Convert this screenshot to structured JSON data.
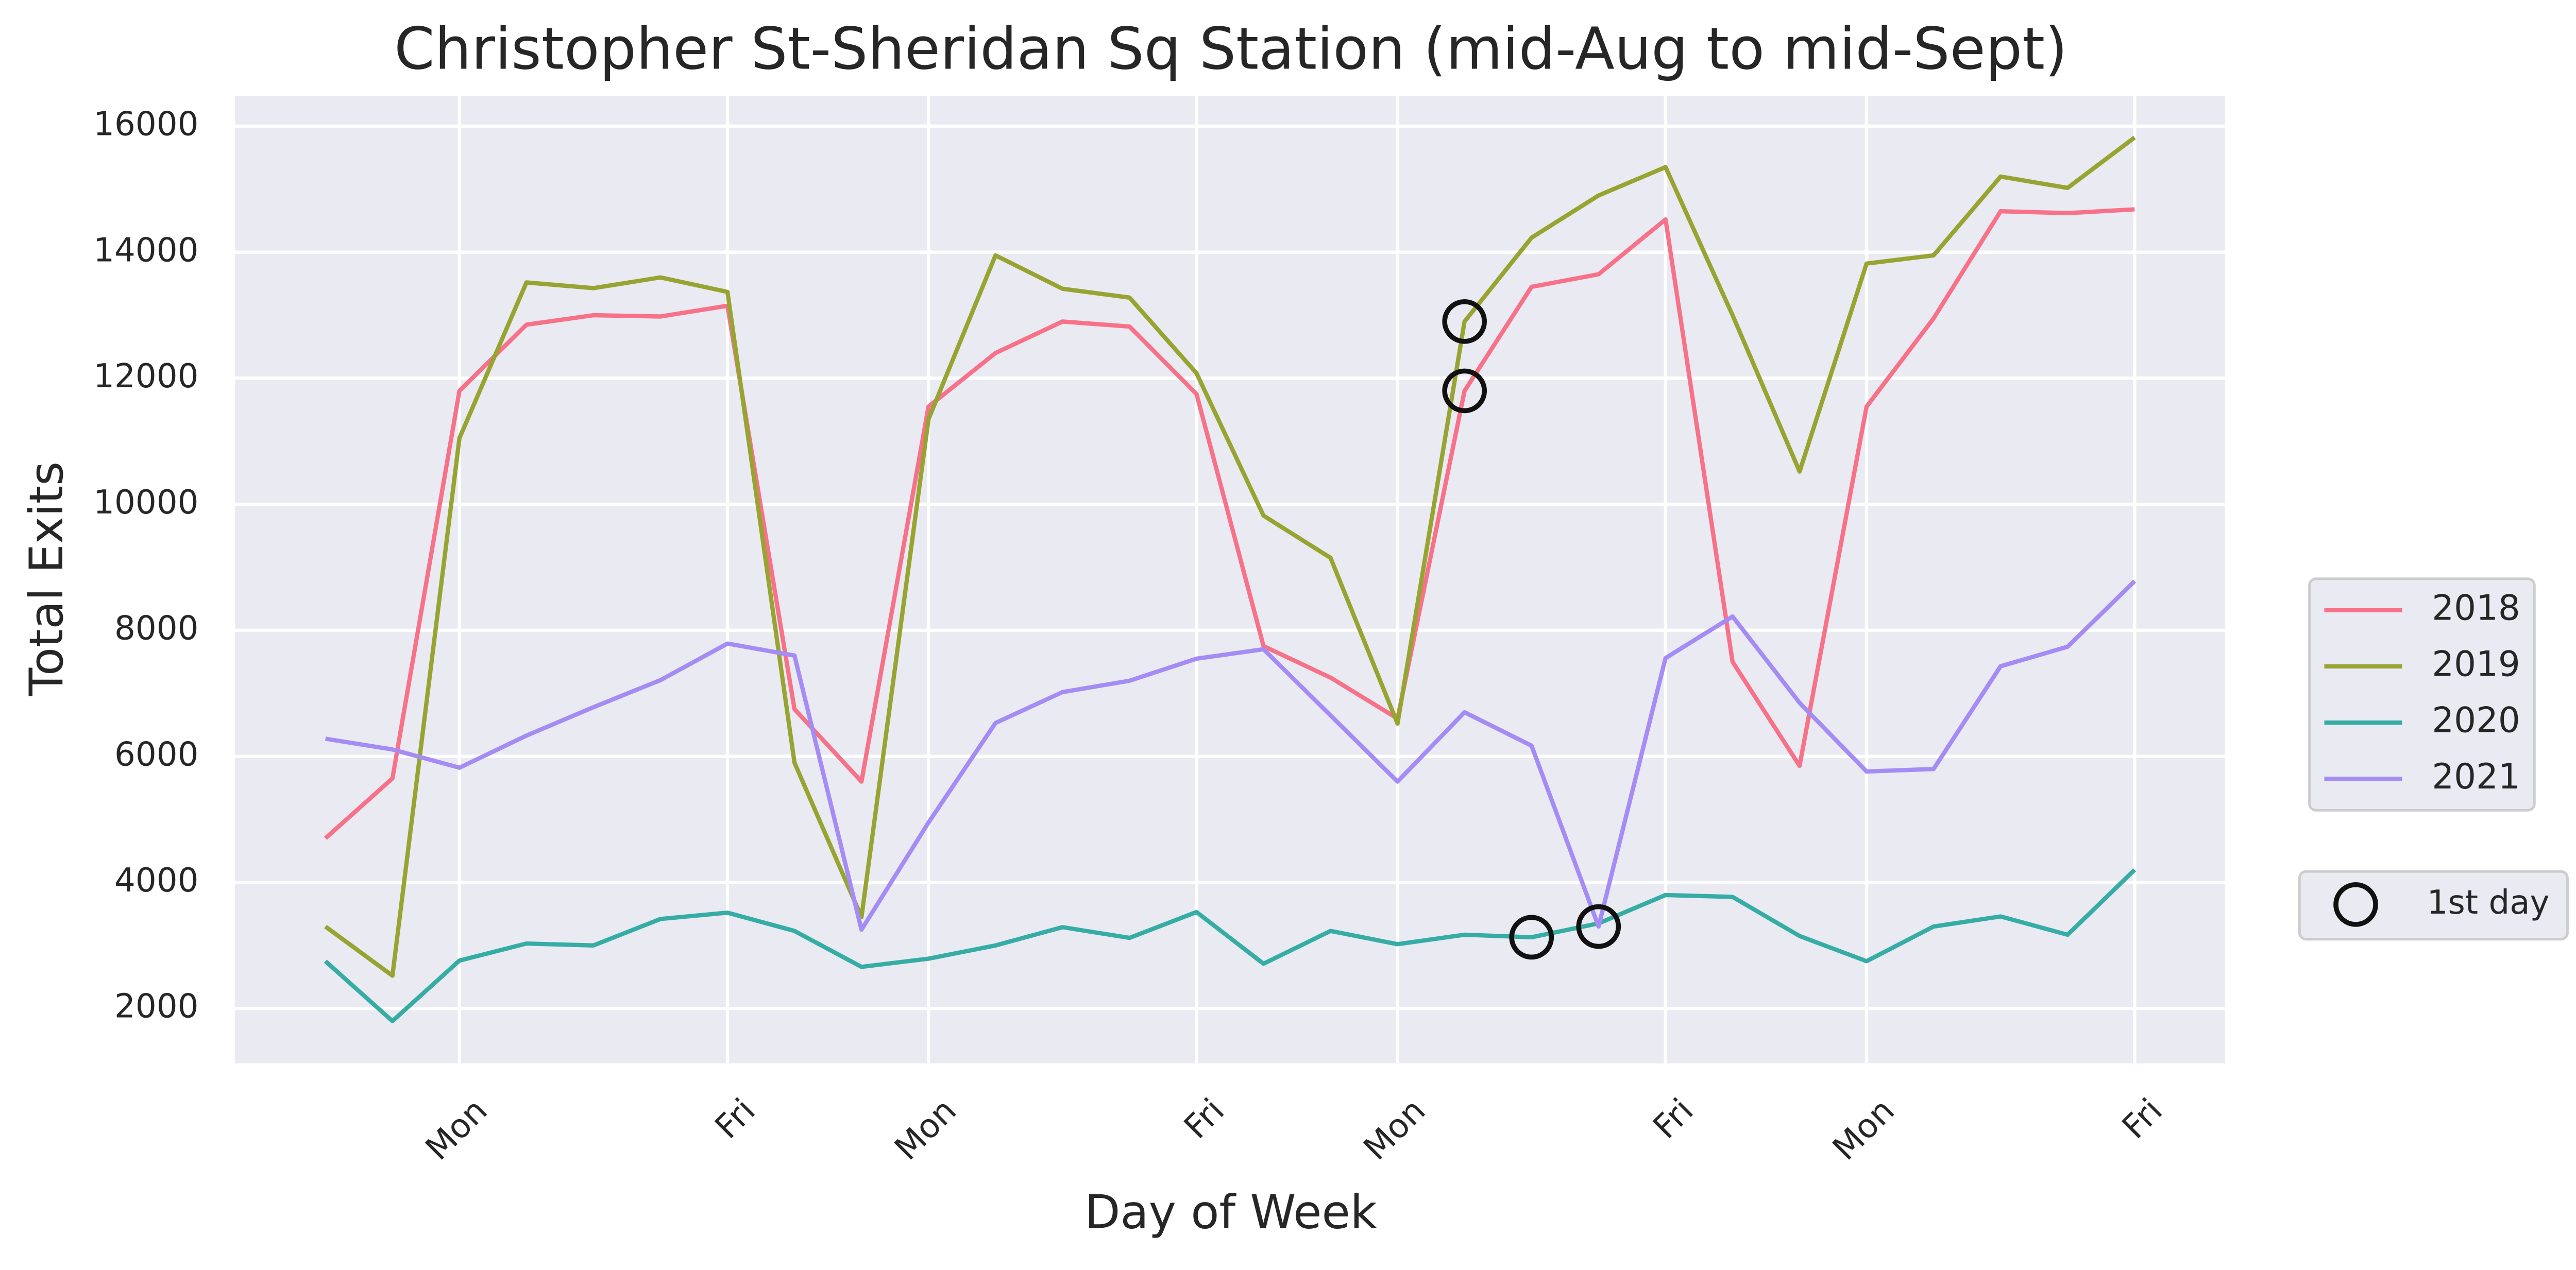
{
  "chart_data": {
    "type": "line",
    "title": "Christopher St-Sheridan Sq Station (mid-Aug to mid-Sept)",
    "x_label": "Day of Week",
    "y_label": "Total Exits",
    "x": [
      0,
      1,
      2,
      3,
      4,
      5,
      6,
      7,
      8,
      9,
      10,
      11,
      12,
      13,
      14,
      15,
      16,
      17,
      18,
      19,
      20,
      21,
      22,
      23,
      24,
      25,
      26,
      27
    ],
    "xlim": [
      -1.35,
      28.35
    ],
    "xticks": [
      {
        "value": 2,
        "label": "Mon"
      },
      {
        "value": 6,
        "label": "Fri"
      },
      {
        "value": 9,
        "label": "Mon"
      },
      {
        "value": 13,
        "label": "Fri"
      },
      {
        "value": 16,
        "label": "Mon"
      },
      {
        "value": 20,
        "label": "Fri"
      },
      {
        "value": 23,
        "label": "Mon"
      },
      {
        "value": 27,
        "label": "Fri"
      }
    ],
    "ylim": [
      1130,
      16480
    ],
    "yticks": [
      2000,
      4000,
      6000,
      8000,
      10000,
      12000,
      14000,
      16000
    ],
    "grid": true,
    "legend": "right",
    "series": [
      {
        "name": "2018",
        "color": "#f77189",
        "values": [
          4700,
          5650,
          11800,
          12850,
          13000,
          12980,
          13150,
          6750,
          5600,
          11550,
          12400,
          12900,
          12820,
          11750,
          7750,
          7250,
          6600,
          11800,
          13450,
          13650,
          14520,
          7500,
          5850,
          11550,
          12950,
          14650,
          14620,
          14680
        ]
      },
      {
        "name": "2019",
        "color": "#97a431",
        "values": [
          3300,
          2520,
          11050,
          13520,
          13430,
          13600,
          13370,
          5900,
          3450,
          11350,
          13950,
          13420,
          13280,
          12080,
          9820,
          9150,
          6520,
          12900,
          14230,
          14900,
          15350,
          13000,
          10520,
          13820,
          13950,
          15200,
          15020,
          15820
        ]
      },
      {
        "name": "2020",
        "color": "#36ada4",
        "values": [
          2750,
          1800,
          2760,
          3030,
          3000,
          3420,
          3520,
          3230,
          2660,
          2790,
          3000,
          3290,
          3120,
          3530,
          2710,
          3230,
          3020,
          3170,
          3130,
          3350,
          3800,
          3770,
          3150,
          2750,
          3300,
          3460,
          3170,
          4200
        ]
      },
      {
        "name": "2021",
        "color": "#a48cf4",
        "values": [
          6280,
          6110,
          5820,
          6330,
          6780,
          7210,
          7790,
          7600,
          3250,
          4950,
          6530,
          7020,
          7200,
          7550,
          7700,
          6650,
          5600,
          6700,
          6170,
          3300,
          7560,
          8220,
          6850,
          5760,
          5800,
          7430,
          7740,
          8780
        ]
      },
      {
        "name": "1st day",
        "color": "#111111",
        "style": "scatter",
        "x": [
          17,
          17,
          18,
          19
        ],
        "values": [
          12900,
          11800,
          3130,
          3300
        ]
      }
    ]
  }
}
